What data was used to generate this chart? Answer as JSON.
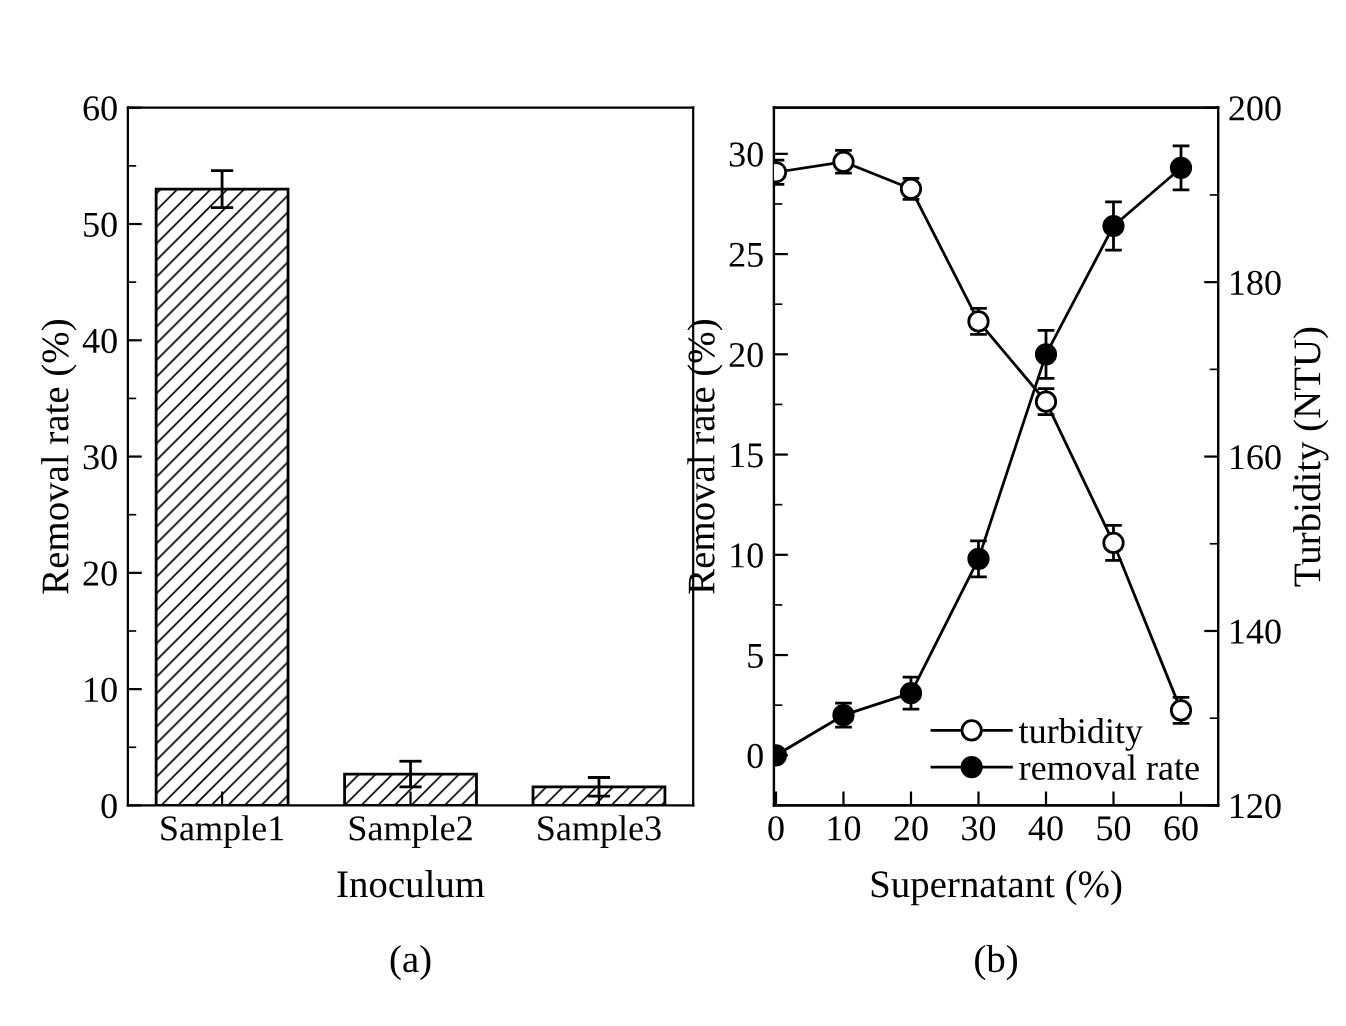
{
  "chart_data": [
    {
      "type": "bar",
      "categories": [
        "Sample1",
        "Sample2",
        "Sample3"
      ],
      "values": [
        53.0,
        2.7,
        1.6
      ],
      "errors": [
        1.6,
        1.1,
        0.8
      ],
      "color": "#000000",
      "xlabel": "Inoculum",
      "ylabel": "Removal rate (%)",
      "ylim": [
        0,
        60
      ],
      "yticks": [
        0,
        10,
        20,
        30,
        40,
        50,
        60
      ],
      "grid": false,
      "annotations": [
        "(a)"
      ]
    },
    {
      "type": "line",
      "x": [
        0,
        10,
        20,
        30,
        40,
        50,
        60
      ],
      "xlim": [
        -0.3,
        65.5
      ],
      "xticks": [
        0,
        10,
        20,
        30,
        40,
        50,
        60
      ],
      "ylim": [
        -2.5,
        32.3
      ],
      "yticks": [
        0,
        5,
        10,
        15,
        20,
        25,
        30
      ],
      "y2lim": [
        120,
        200
      ],
      "y2ticks": [
        120,
        140,
        160,
        180,
        200
      ],
      "xlabel": "Supernatant (%)",
      "ylabel": "Removal rate (%)",
      "y2label": "Turbidity (NTU)",
      "marker": "circle",
      "line_style": "solid",
      "grid": false,
      "legend": "bottom right",
      "annotations": [
        "(b)"
      ],
      "series": [
        {
          "name": "turbidity",
          "color": "#000000",
          "axis": "y2",
          "values": [
            192.6,
            193.8,
            190.7,
            175.5,
            166.3,
            150.1,
            130.9
          ],
          "errors": [
            1.4,
            1.3,
            1.2,
            1.5,
            1.5,
            2.0,
            1.5
          ]
        },
        {
          "name": "removal rate",
          "color": "#000000",
          "axis": "y",
          "values": [
            0,
            2.0,
            3.1,
            9.8,
            20.0,
            26.4,
            29.3
          ],
          "errors": [
            null,
            0.6,
            0.8,
            0.9,
            1.2,
            1.2,
            1.1
          ]
        }
      ]
    }
  ]
}
